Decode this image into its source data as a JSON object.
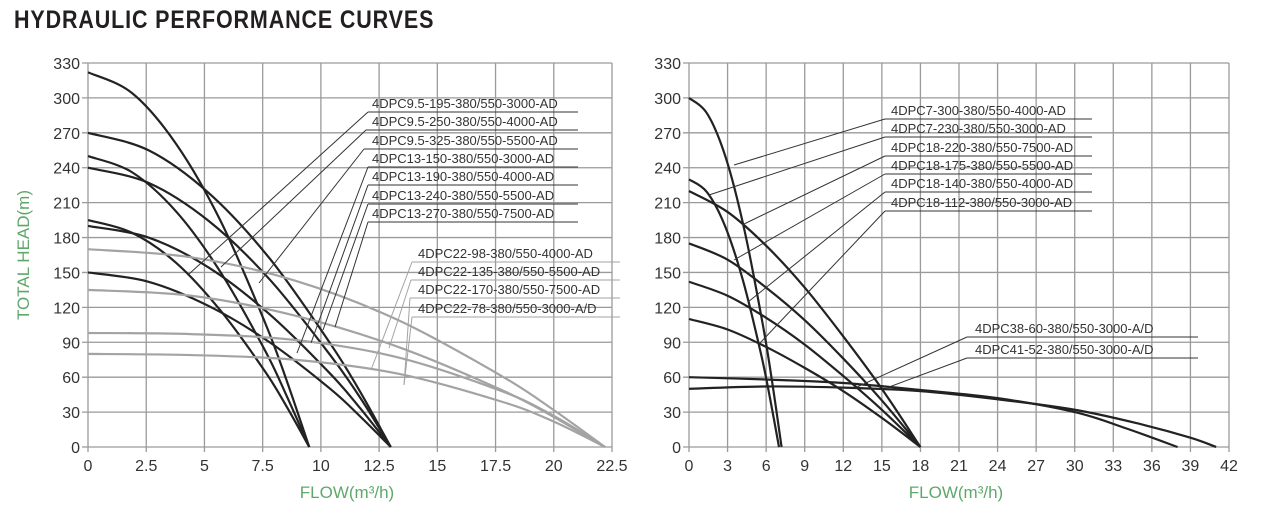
{
  "title": "HYDRAULIC PERFORMANCE CURVES",
  "colors": {
    "black_curve": "#222222",
    "grey_curve": "#a3a3a3",
    "grid": "#9a9a9a",
    "axis_label": "#5fa86a"
  },
  "chart_data": [
    {
      "type": "line",
      "title": "",
      "xlabel": "FLOW(m³/h)",
      "ylabel": "TOTAL HEAD(m)",
      "xlim": [
        0,
        22.5
      ],
      "ylim": [
        0,
        330
      ],
      "xticks": [
        "0",
        "2.5",
        "5",
        "7.5",
        "10",
        "12.5",
        "15",
        "17.5",
        "20",
        "22.5"
      ],
      "yticks": [
        "0",
        "30",
        "60",
        "90",
        "120",
        "150",
        "180",
        "210",
        "240",
        "270",
        "300",
        "330"
      ],
      "grid": true,
      "series": [
        {
          "name": "4DPC9.5-195-380/550-3000-AD",
          "color": "#222222",
          "x": [
            0,
            1.9,
            3.8,
            5.7,
            7.6,
            8.55,
            9.5
          ],
          "y": [
            195,
            184,
            158,
            117,
            65,
            34,
            0
          ]
        },
        {
          "name": "4DPC9.5-250-380/550-4000-AD",
          "color": "#222222",
          "x": [
            0,
            1.9,
            3.8,
            5.7,
            7.6,
            8.55,
            9.5
          ],
          "y": [
            250,
            236,
            202,
            150,
            83,
            43,
            0
          ]
        },
        {
          "name": "4DPC9.5-325-380/550-5500-AD",
          "color": "#222222",
          "x": [
            0,
            1.9,
            3.8,
            5.7,
            7.6,
            8.55,
            9.5
          ],
          "y": [
            322,
            304,
            260,
            194,
            107,
            56,
            0
          ]
        },
        {
          "name": "4DPC13-150-380/550-3000-AD",
          "color": "#222222",
          "x": [
            0,
            2.6,
            5.2,
            7.8,
            10.4,
            11.7,
            13
          ],
          "y": [
            150,
            142,
            121,
            90,
            50,
            26,
            0
          ]
        },
        {
          "name": "4DPC13-190-380/550-4000-AD",
          "color": "#222222",
          "x": [
            0,
            2.6,
            5.2,
            7.8,
            10.4,
            11.7,
            13
          ],
          "y": [
            190,
            180,
            154,
            114,
            63,
            33,
            0
          ]
        },
        {
          "name": "4DPC13-240-380/550-5500-AD",
          "color": "#222222",
          "x": [
            0,
            2.6,
            5.2,
            7.8,
            10.4,
            11.7,
            13
          ],
          "y": [
            240,
            227,
            194,
            144,
            79,
            42,
            0
          ]
        },
        {
          "name": "4DPC13-270-380/550-7500-AD",
          "color": "#222222",
          "x": [
            0,
            2.6,
            5.2,
            7.8,
            10.4,
            11.7,
            13
          ],
          "y": [
            270,
            255,
            218,
            162,
            89,
            47,
            0
          ]
        },
        {
          "name": "4DPC22-98-380/550-4000-AD",
          "color": "#a3a3a3",
          "x": [
            0,
            4.44,
            8.88,
            13.32,
            17.76,
            19.98,
            22.2
          ],
          "y": [
            98,
            97,
            92,
            77,
            48,
            27,
            0
          ]
        },
        {
          "name": "4DPC22-135-380/550-5500-AD",
          "color": "#a3a3a3",
          "x": [
            0,
            4.44,
            8.88,
            13.32,
            17.76,
            19.98,
            22.2
          ],
          "y": [
            135,
            130,
            113,
            86,
            49,
            26,
            0
          ]
        },
        {
          "name": "4DPC22-170-380/550-7500-AD",
          "color": "#a3a3a3",
          "x": [
            0,
            4.44,
            8.88,
            13.32,
            17.76,
            19.98,
            22.2
          ],
          "y": [
            170,
            163,
            143,
            109,
            61,
            32,
            0
          ]
        },
        {
          "name": "4DPC22-78-380/550-3000-A/D",
          "color": "#a3a3a3",
          "x": [
            0,
            4.44,
            8.88,
            13.32,
            17.76,
            19.98,
            22.2
          ],
          "y": [
            80,
            79,
            75,
            63,
            39,
            22,
            0
          ]
        }
      ]
    },
    {
      "type": "line",
      "title": "",
      "xlabel": "FLOW(m³/h)",
      "ylabel": "",
      "xlim": [
        0,
        42
      ],
      "ylim": [
        0,
        330
      ],
      "xticks": [
        "0",
        "3",
        "6",
        "9",
        "12",
        "15",
        "18",
        "21",
        "24",
        "27",
        "30",
        "33",
        "36",
        "39",
        "42"
      ],
      "yticks": [
        "0",
        "30",
        "60",
        "90",
        "120",
        "150",
        "180",
        "210",
        "240",
        "270",
        "300",
        "330"
      ],
      "grid": true,
      "series": [
        {
          "name": "4DPC7-300-380/550-4000-AD",
          "color": "#222222",
          "x": [
            0,
            1.44,
            2.88,
            4.32,
            5.76,
            6.48,
            7.2
          ],
          "y": [
            300,
            286,
            248,
            186,
            104,
            55,
            0
          ]
        },
        {
          "name": "4DPC7-230-380/550-3000-AD",
          "color": "#222222",
          "x": [
            0,
            1.4,
            2.8,
            4.2,
            5.6,
            6.3,
            7
          ],
          "y": [
            230,
            219,
            190,
            143,
            80,
            42,
            0
          ]
        },
        {
          "name": "4DPC18-220-380/550-7500-AD",
          "color": "#222222",
          "x": [
            0,
            3,
            6,
            9,
            12,
            15,
            18
          ],
          "y": [
            220,
            202,
            173,
            137,
            95,
            50,
            0
          ]
        },
        {
          "name": "4DPC18-175-380/550-5500-AD",
          "color": "#222222",
          "x": [
            0,
            3,
            6,
            9,
            12,
            15,
            18
          ],
          "y": [
            175,
            161,
            137,
            109,
            76,
            40,
            0
          ]
        },
        {
          "name": "4DPC18-140-380/550-4000-AD",
          "color": "#222222",
          "x": [
            0,
            3,
            6,
            9,
            12,
            15,
            18
          ],
          "y": [
            142,
            130,
            111,
            88,
            61,
            32,
            0
          ]
        },
        {
          "name": "4DPC18-112-380/550-3000-AD",
          "color": "#222222",
          "x": [
            0,
            3,
            6,
            9,
            12,
            15,
            18
          ],
          "y": [
            110,
            101,
            86,
            68,
            48,
            25,
            0
          ]
        },
        {
          "name": "4DPC38-60-380/550-3000-A/D",
          "color": "#222222",
          "x": [
            0,
            6,
            12,
            18,
            24,
            30,
            34,
            38
          ],
          "y": [
            60,
            58,
            55,
            49,
            42,
            30,
            16,
            0
          ]
        },
        {
          "name": "4DPC41-52-380/550-3000-A/D",
          "color": "#222222",
          "x": [
            0,
            6,
            12,
            18,
            24,
            30,
            35,
            39,
            41
          ],
          "y": [
            50,
            52,
            51,
            48,
            41,
            32,
            20,
            8,
            0
          ]
        }
      ]
    }
  ]
}
